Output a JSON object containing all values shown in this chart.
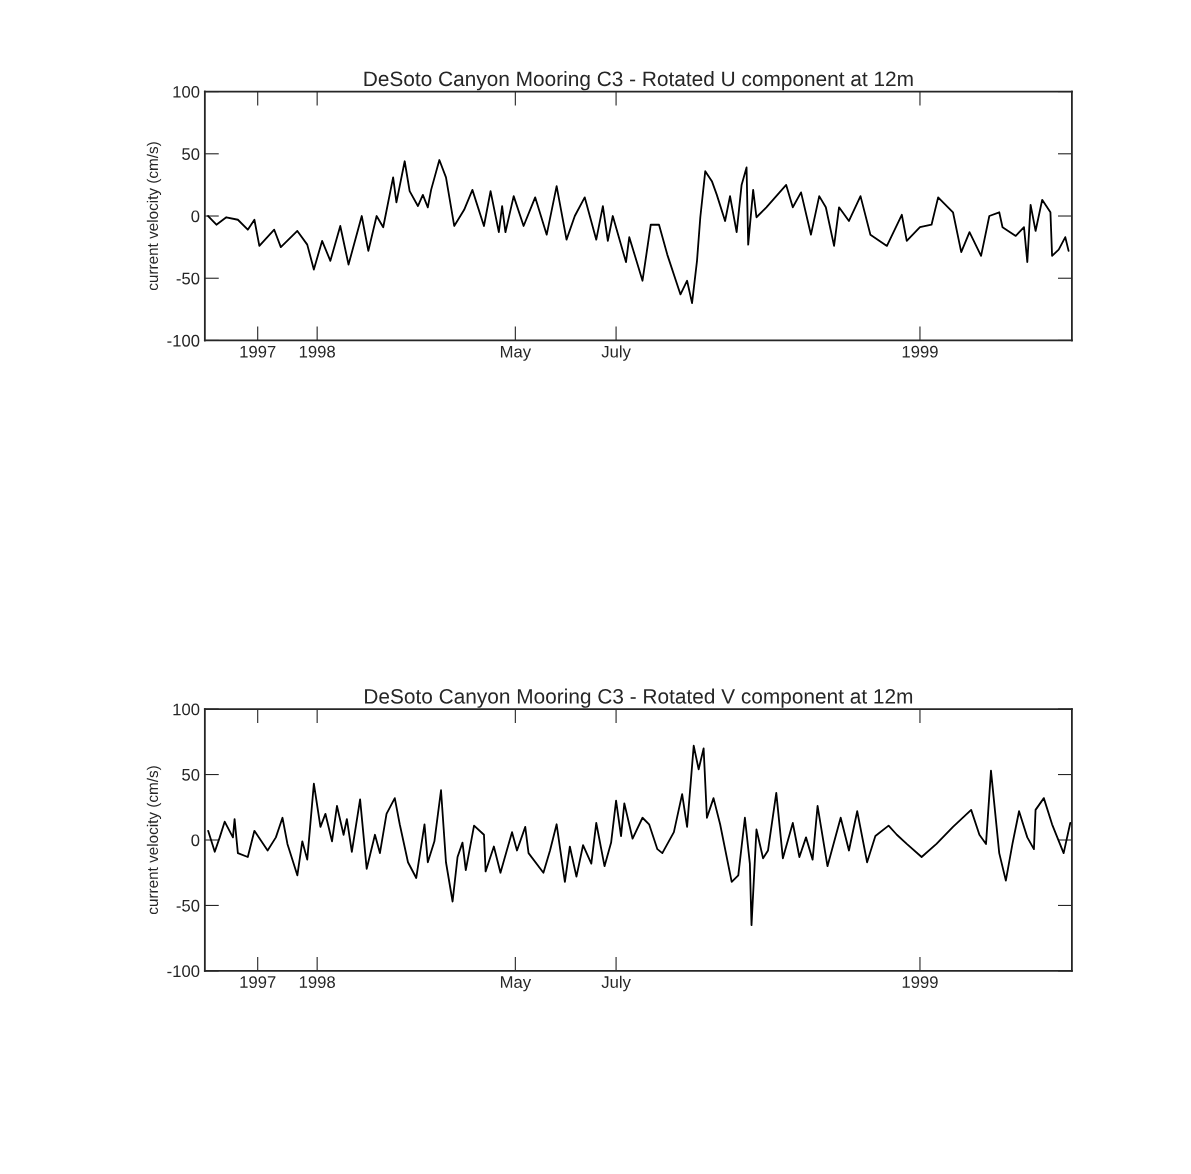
{
  "chart_data": [
    {
      "type": "line",
      "title": "DeSoto Canyon Mooring C3 - Rotated U component at 12m",
      "ylabel": "current velocity (cm/s)",
      "xlim": [
        "1997-10-25",
        "1999-04-03"
      ],
      "xticks": [
        {
          "value": "1997-11-26",
          "label": "1997"
        },
        {
          "value": "1998-01-01",
          "label": "1998"
        },
        {
          "value": "1998-05-01",
          "label": "May"
        },
        {
          "value": "1998-07-01",
          "label": "July"
        },
        {
          "value": "1999-01-01",
          "label": "1999"
        }
      ],
      "ylim": [
        -100,
        100
      ],
      "yticks": [
        -100,
        -50,
        0,
        50,
        100
      ],
      "series": [
        {
          "color": "#000000",
          "x": [
            "1997-10-27",
            "1997-11-01",
            "1997-11-07",
            "1997-11-14",
            "1997-11-20",
            "1997-11-24",
            "1997-11-27",
            "1997-12-06",
            "1997-12-10",
            "1997-12-20",
            "1997-12-26",
            "1997-12-30",
            "1998-01-04",
            "1998-01-09",
            "1998-01-15",
            "1998-01-20",
            "1998-01-28",
            "1998-02-01",
            "1998-02-06",
            "1998-02-10",
            "1998-02-16",
            "1998-02-18",
            "1998-02-23",
            "1998-02-26",
            "1998-03-03",
            "1998-03-06",
            "1998-03-09",
            "1998-03-11",
            "1998-03-16",
            "1998-03-20",
            "1998-03-25",
            "1998-03-31",
            "1998-04-05",
            "1998-04-12",
            "1998-04-16",
            "1998-04-21",
            "1998-04-23",
            "1998-04-25",
            "1998-04-30",
            "1998-05-06",
            "1998-05-13",
            "1998-05-20",
            "1998-05-26",
            "1998-06-01",
            "1998-06-06",
            "1998-06-12",
            "1998-06-19",
            "1998-06-23",
            "1998-06-26",
            "1998-06-29",
            "1998-07-07",
            "1998-07-09",
            "1998-07-17",
            "1998-07-22",
            "1998-07-27",
            "1998-08-01",
            "1998-08-09",
            "1998-08-13",
            "1998-08-16",
            "1998-08-19",
            "1998-08-21",
            "1998-08-24",
            "1998-08-28",
            "1998-08-31",
            "1998-09-05",
            "1998-09-08",
            "1998-09-12",
            "1998-09-15",
            "1998-09-18",
            "1998-09-19",
            "1998-09-22",
            "1998-09-24",
            "1998-09-30",
            "1998-10-12",
            "1998-10-16",
            "1998-10-21",
            "1998-10-27",
            "1998-11-01",
            "1998-11-05",
            "1998-11-10",
            "1998-11-13",
            "1998-11-19",
            "1998-11-26",
            "1998-12-02",
            "1998-12-12",
            "1998-12-21",
            "1998-12-24",
            "1999-01-01",
            "1999-01-08",
            "1999-01-12",
            "1999-01-21",
            "1999-01-26",
            "1999-01-31",
            "1999-02-07",
            "1999-02-12",
            "1999-02-18",
            "1999-02-20",
            "1999-02-28",
            "1999-03-05",
            "1999-03-07",
            "1999-03-09",
            "1999-03-12",
            "1999-03-16",
            "1999-03-21",
            "1999-03-22",
            "1999-03-26",
            "1999-03-30",
            "1999-04-01"
          ],
          "values": [
            0,
            -7,
            -1,
            -3,
            -11,
            -3,
            -24,
            -11,
            -25,
            -12,
            -23,
            -43,
            -20,
            -36,
            -8,
            -39,
            0,
            -28,
            0,
            -9,
            31,
            11,
            44,
            20,
            8,
            17,
            7,
            21,
            45,
            31,
            -8,
            5,
            21,
            -8,
            20,
            -13,
            8,
            -13,
            16,
            -8,
            15,
            -15,
            24,
            -19,
            0,
            15,
            -19,
            8,
            -20,
            0,
            -37,
            -17,
            -52,
            -7,
            -7,
            -31,
            -63,
            -52,
            -70,
            -36,
            -1,
            36,
            28,
            17,
            -4,
            16,
            -13,
            25,
            39,
            -23,
            21,
            -1,
            7,
            25,
            7,
            19,
            -15,
            16,
            7,
            -24,
            7,
            -4,
            16,
            -15,
            -24,
            1,
            -20,
            -9,
            -7,
            15,
            3,
            -29,
            -13,
            -32,
            0,
            3,
            -9,
            -16,
            -9,
            -37,
            9,
            -12,
            13,
            3,
            -32,
            -27,
            -17,
            -28
          ]
        }
      ]
    },
    {
      "type": "line",
      "title": "DeSoto Canyon Mooring C3 - Rotated V component at 12m",
      "ylabel": "current velocity (cm/s)",
      "xlim": [
        "1997-10-25",
        "1999-04-03"
      ],
      "xticks": [
        {
          "value": "1997-11-26",
          "label": "1997"
        },
        {
          "value": "1998-01-01",
          "label": "1998"
        },
        {
          "value": "1998-05-01",
          "label": "May"
        },
        {
          "value": "1998-07-01",
          "label": "July"
        },
        {
          "value": "1999-01-01",
          "label": "1999"
        }
      ],
      "ylim": [
        -100,
        100
      ],
      "yticks": [
        -100,
        -50,
        0,
        50,
        100
      ],
      "series": [
        {
          "color": "#000000",
          "x": [
            "1997-10-27",
            "1997-10-31",
            "1997-11-03",
            "1997-11-06",
            "1997-11-11",
            "1997-11-12",
            "1997-11-14",
            "1997-11-20",
            "1997-11-24",
            "1997-12-02",
            "1997-12-07",
            "1997-12-11",
            "1997-12-14",
            "1997-12-20",
            "1997-12-23",
            "1997-12-26",
            "1997-12-30",
            "1998-01-03",
            "1998-01-06",
            "1998-01-10",
            "1998-01-13",
            "1998-01-17",
            "1998-01-19",
            "1998-01-22",
            "1998-01-27",
            "1998-01-31",
            "1998-02-05",
            "1998-02-08",
            "1998-02-12",
            "1998-02-17",
            "1998-02-20",
            "1998-02-25",
            "1998-03-02",
            "1998-03-07",
            "1998-03-09",
            "1998-03-13",
            "1998-03-17",
            "1998-03-20",
            "1998-03-24",
            "1998-03-27",
            "1998-03-30",
            "1998-04-01",
            "1998-04-06",
            "1998-04-12",
            "1998-04-13",
            "1998-04-18",
            "1998-04-22",
            "1998-04-29",
            "1998-05-02",
            "1998-05-07",
            "1998-05-09",
            "1998-05-18",
            "1998-05-22",
            "1998-05-26",
            "1998-05-31",
            "1998-06-03",
            "1998-06-07",
            "1998-06-11",
            "1998-06-16",
            "1998-06-19",
            "1998-06-24",
            "1998-06-28",
            "1998-07-01",
            "1998-07-04",
            "1998-07-06",
            "1998-07-11",
            "1998-07-17",
            "1998-07-21",
            "1998-07-26",
            "1998-07-29",
            "1998-08-05",
            "1998-08-10",
            "1998-08-13",
            "1998-08-17",
            "1998-08-20",
            "1998-08-23",
            "1998-08-25",
            "1998-08-29",
            "1998-09-02",
            "1998-09-09",
            "1998-09-13",
            "1998-09-17",
            "1998-09-20",
            "1998-09-21",
            "1998-09-24",
            "1998-09-28",
            "1998-10-01",
            "1998-10-06",
            "1998-10-10",
            "1998-10-16",
            "1998-10-20",
            "1998-10-24",
            "1998-10-28",
            "1998-10-31",
            "1998-11-06",
            "1998-11-14",
            "1998-11-19",
            "1998-11-24",
            "1998-11-30",
            "1998-12-05",
            "1998-12-13",
            "1998-12-18",
            "1998-12-24",
            "1999-01-02",
            "1999-01-11",
            "1999-01-21",
            "1999-02-01",
            "1999-02-06",
            "1999-02-10",
            "1999-02-13",
            "1999-02-18",
            "1999-02-22",
            "1999-02-26",
            "1999-03-02",
            "1999-03-07",
            "1999-03-11",
            "1999-03-12",
            "1999-03-17",
            "1999-03-22",
            "1999-03-29",
            "1999-04-02"
          ],
          "values": [
            7,
            -9,
            2,
            14,
            2,
            16,
            -10,
            -13,
            7,
            -8,
            2,
            17,
            -3,
            -27,
            -1,
            -15,
            43,
            10,
            20,
            -1,
            26,
            4,
            16,
            -9,
            31,
            -22,
            4,
            -10,
            20,
            32,
            12,
            -17,
            -29,
            12,
            -17,
            -1,
            38,
            -17,
            -47,
            -13,
            -2,
            -23,
            11,
            4,
            -24,
            -5,
            -25,
            6,
            -8,
            10,
            -10,
            -25,
            -8,
            12,
            -32,
            -5,
            -28,
            -4,
            -18,
            13,
            -20,
            -2,
            30,
            3,
            28,
            1,
            17,
            12,
            -7,
            -10,
            6,
            35,
            10,
            72,
            54,
            70,
            17,
            32,
            12,
            -32,
            -27,
            17,
            -18,
            -65,
            8,
            -14,
            -8,
            36,
            -14,
            13,
            -13,
            2,
            -15,
            26,
            -20,
            17,
            -8,
            22,
            -17,
            3,
            11,
            4,
            -3,
            -13,
            -3,
            10,
            23,
            4,
            -3,
            53,
            -10,
            -31,
            -3,
            22,
            2,
            -7,
            23,
            32,
            12,
            -10,
            13
          ]
        }
      ]
    }
  ]
}
